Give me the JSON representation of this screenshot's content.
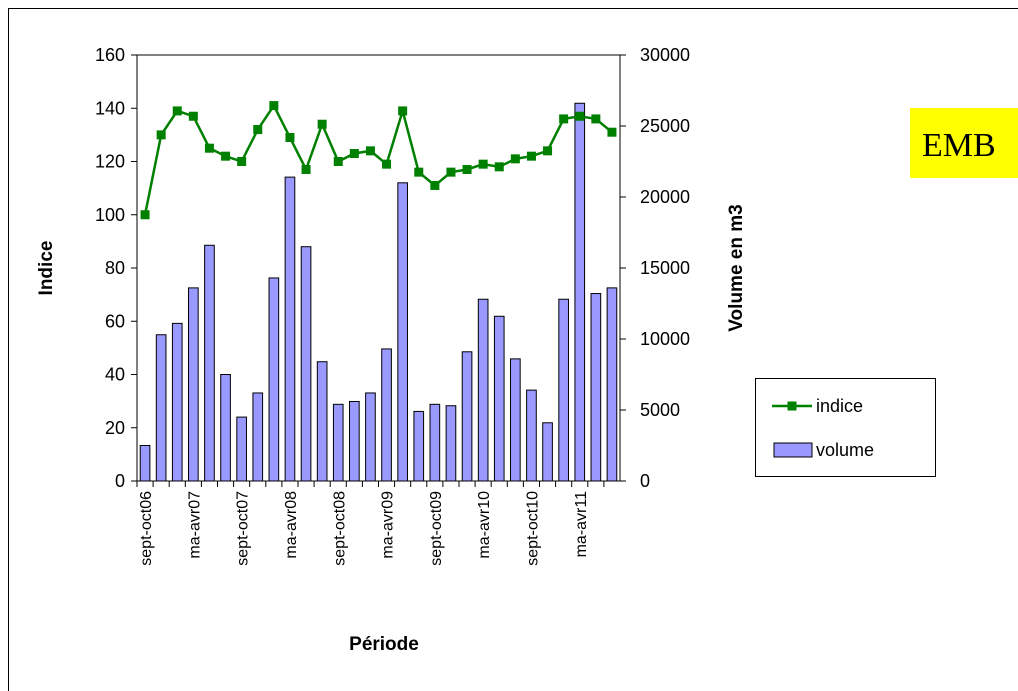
{
  "chart_data": {
    "type": "bar-line",
    "note_label": "EMB",
    "x_label": "Période",
    "y_label": "Indice",
    "y2_label": "Volume en m3",
    "categories": [
      "sept-oct06",
      null,
      null,
      "ma-avr07",
      null,
      null,
      "sept-oct07",
      null,
      null,
      "ma-avr08",
      null,
      null,
      "sept-oct08",
      null,
      null,
      "ma-avr09",
      null,
      null,
      "sept-oct09",
      null,
      null,
      "ma-avr10",
      null,
      null,
      "sept-oct10",
      null,
      null,
      "ma-avr11",
      null,
      null
    ],
    "series": [
      {
        "name": "indice",
        "type": "line",
        "color": "#008000",
        "axis": "y",
        "values": [
          100,
          130,
          139,
          137,
          125,
          122,
          120,
          132,
          141,
          129,
          117,
          134,
          120,
          123,
          124,
          119,
          139,
          116,
          111,
          116,
          117,
          119,
          118,
          121,
          122,
          124,
          136,
          137,
          136,
          131
        ]
      },
      {
        "name": "volume",
        "type": "bar",
        "color": "#9999ff",
        "axis": "y2",
        "values": [
          2500,
          10300,
          11100,
          13600,
          16600,
          7500,
          4500,
          6200,
          14300,
          21400,
          16500,
          8400,
          5400,
          5600,
          6200,
          9300,
          21000,
          4900,
          5400,
          5300,
          9100,
          12800,
          11600,
          8600,
          6400,
          4100,
          12800,
          26600,
          13200,
          13600
        ]
      }
    ],
    "ylim": [
      0,
      160
    ],
    "yticks": [
      0,
      20,
      40,
      60,
      80,
      100,
      120,
      140,
      160
    ],
    "y2lim": [
      0,
      30000
    ],
    "y2ticks": [
      0,
      5000,
      10000,
      15000,
      20000,
      25000,
      30000
    ],
    "grid": false
  }
}
